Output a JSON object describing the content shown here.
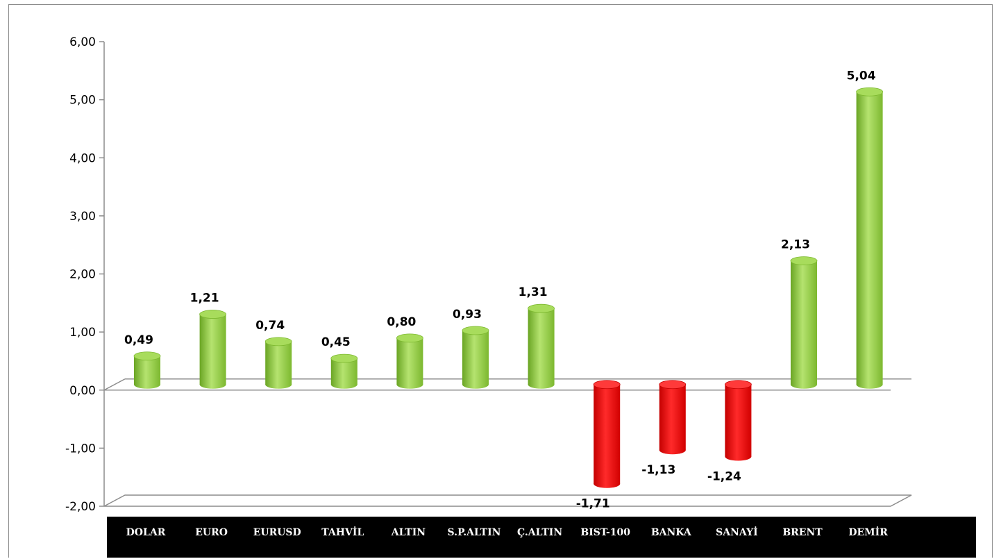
{
  "chart_data": {
    "type": "bar",
    "categories": [
      "DOLAR",
      "EURO",
      "EURUSD",
      "TAHVİL",
      "ALTIN",
      "S.P.ALTIN",
      "Ç.ALTIN",
      "BIST-100",
      "BANKA",
      "SANAYİ",
      "BRENT",
      "DEMİR"
    ],
    "values": [
      0.49,
      1.21,
      0.74,
      0.45,
      0.8,
      0.93,
      1.31,
      -1.71,
      -1.13,
      -1.24,
      2.13,
      5.04
    ],
    "value_labels": [
      "0,49",
      "1,21",
      "0,74",
      "0,45",
      "0,80",
      "0,93",
      "1,31",
      "-1,71",
      "-1,13",
      "-1,24",
      "2,13",
      "5,04"
    ],
    "ylim": [
      -2,
      6
    ],
    "yticks": [
      -2,
      -1,
      0,
      1,
      2,
      3,
      4,
      5,
      6
    ],
    "ytick_labels": [
      "-2,00",
      "-1,00",
      "0,00",
      "1,00",
      "2,00",
      "3,00",
      "4,00",
      "5,00",
      "6,00"
    ],
    "title": "",
    "xlabel": "",
    "ylabel": "",
    "grid": false,
    "colors": {
      "positive": "#8fce3c",
      "negative": "#ee1111",
      "category_band": "#000000",
      "axis": "#8c8c8c"
    }
  }
}
